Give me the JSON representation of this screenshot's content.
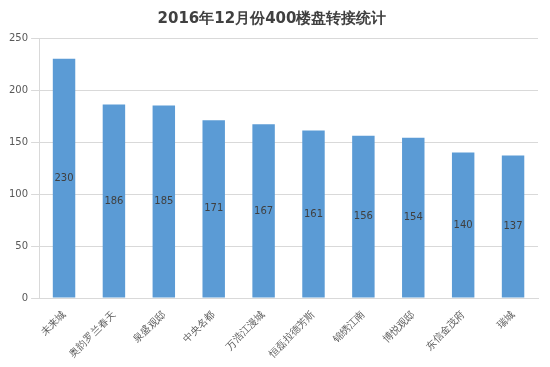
{
  "chart_data": {
    "type": "bar",
    "title": "2016年12月份400楼盘转接统计",
    "categories": [
      "未来城",
      "奥韵罗兰春天",
      "泉盛观邸",
      "中央名都",
      "万浩江漫城",
      "恒磊拉德芳斯",
      "锦绣江南",
      "博悦观邸",
      "东信金茂府",
      "瑞城"
    ],
    "values": [
      230,
      186,
      185,
      171,
      167,
      161,
      156,
      154,
      140,
      137
    ],
    "color": "#5b9bd5",
    "ylim": [
      0,
      250
    ],
    "yticks": [
      0,
      50,
      100,
      150,
      200,
      250
    ],
    "grid": true,
    "data_labels": true
  }
}
